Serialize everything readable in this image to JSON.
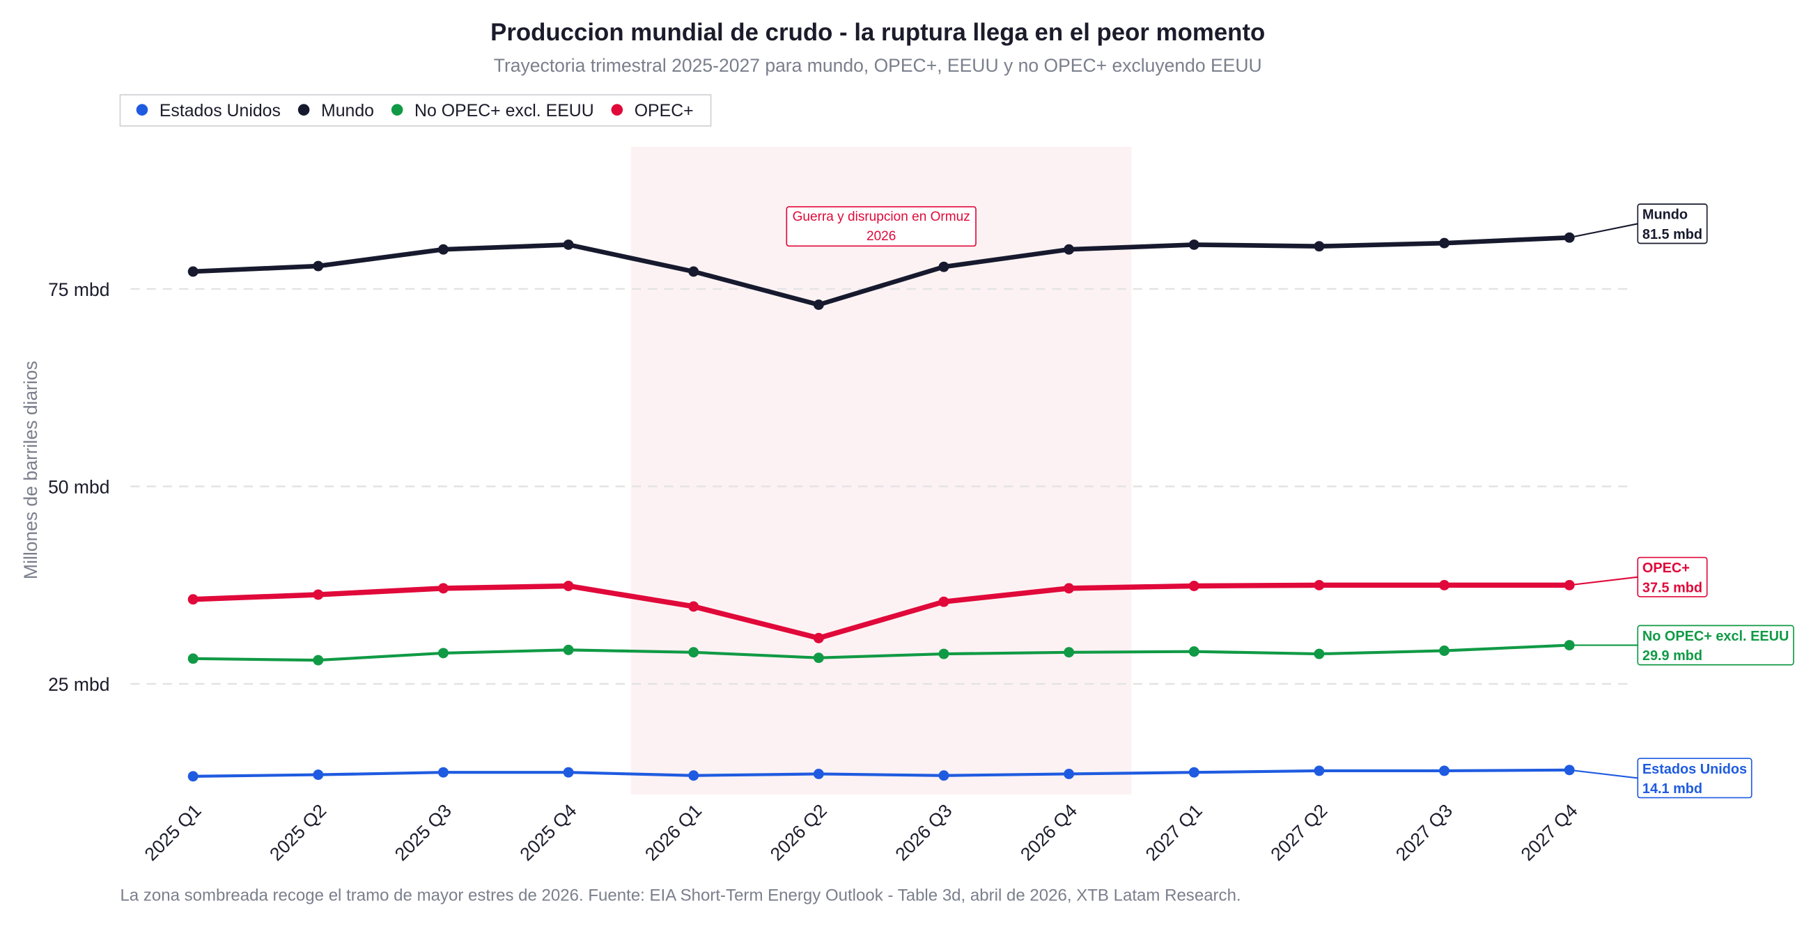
{
  "chart_data": {
    "type": "line",
    "title": "Produccion mundial de crudo - la ruptura llega en el peor momento",
    "subtitle": "Trayectoria trimestral 2025-2027 para mundo, OPEC+, EEUU y no OPEC+ excluyendo EEUU",
    "y_label": "Millones de barriles diarios",
    "note": "La zona sombreada recoge el tramo de mayor estres de 2026. Fuente: EIA Short-Term Energy Outlook - Table 3d, abril de 2026, XTB Latam Research.",
    "categories": [
      "2025 Q1",
      "2025 Q2",
      "2025 Q3",
      "2025 Q4",
      "2026 Q1",
      "2026 Q2",
      "2026 Q3",
      "2026 Q4",
      "2027 Q1",
      "2027 Q2",
      "2027 Q3",
      "2027 Q4"
    ],
    "shade": {
      "from": "2026 Q1",
      "to": "2026 Q4",
      "color": "#fdf2f3"
    },
    "annotation": {
      "lines": [
        "Guerra y disrupcion en Ormuz",
        "2026"
      ],
      "color": "#e0093a"
    },
    "series": [
      {
        "name": "Estados Unidos",
        "color": "#1f5be0",
        "width": 2.5,
        "values": [
          13.3,
          13.5,
          13.8,
          13.8,
          13.4,
          13.6,
          13.4,
          13.6,
          13.8,
          14.0,
          14.0,
          14.1
        ],
        "value_labels": [
          null,
          null,
          null,
          null,
          null,
          null,
          null,
          null,
          null,
          null,
          null,
          "14.1 mbd"
        ]
      },
      {
        "name": "Mundo",
        "color": "#171a2e",
        "width": 4,
        "values": [
          77.2,
          77.9,
          80.0,
          80.6,
          77.2,
          73.0,
          77.8,
          80.0,
          80.6,
          80.4,
          80.8,
          81.5
        ],
        "value_labels": [
          null,
          null,
          null,
          null,
          null,
          null,
          null,
          null,
          null,
          null,
          null,
          "81.5 mbd"
        ]
      },
      {
        "name": "No OPEC+ excl. EEUU",
        "color": "#109a45",
        "width": 2.5,
        "values": [
          28.2,
          28.0,
          28.9,
          29.3,
          29.0,
          28.3,
          28.8,
          29.0,
          29.1,
          28.8,
          29.2,
          29.9
        ],
        "value_labels": [
          null,
          null,
          null,
          null,
          null,
          null,
          null,
          null,
          null,
          null,
          null,
          "29.9 mbd"
        ]
      },
      {
        "name": "OPEC+",
        "color": "#e0093a",
        "width": 4.5,
        "values": [
          35.7,
          36.3,
          37.1,
          37.4,
          34.8,
          30.8,
          35.4,
          37.1,
          37.4,
          37.5,
          37.5,
          37.5
        ],
        "value_labels": [
          null,
          null,
          null,
          null,
          null,
          null,
          null,
          null,
          null,
          null,
          null,
          "37.5 mbd"
        ]
      }
    ],
    "ylim": [
      11,
      93
    ],
    "yticks": [
      {
        "value": 25,
        "label": "25 mbd"
      },
      {
        "value": 50,
        "label": "50 mbd"
      },
      {
        "value": 75,
        "label": "75 mbd"
      }
    ],
    "grid": true,
    "legend": "top-left"
  }
}
